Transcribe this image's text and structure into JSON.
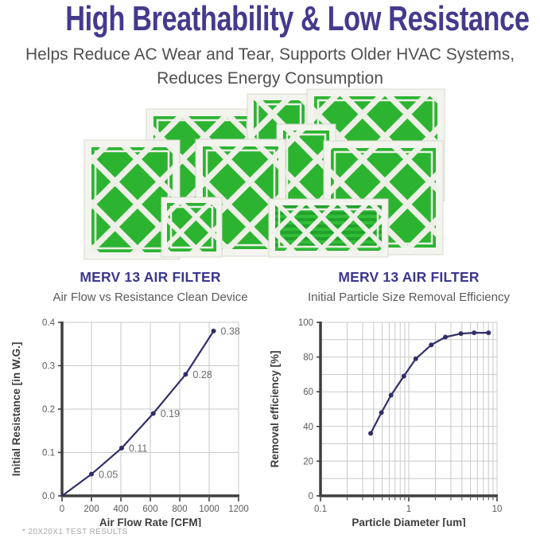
{
  "header": {
    "title": "High Breathability & Low Resistance",
    "subtitle_line1": "Helps Reduce AC Wear and Tear, Supports Older HVAC Systems,",
    "subtitle_line2": "Reduces Energy Consumption"
  },
  "hero": {
    "description": "Group of nine green pleated air filters with white cardboard frames and diagonal lattice supports"
  },
  "footnote": "*  20X20X1 TEST RESULTS",
  "colors": {
    "accent_purple": "#443a8d",
    "chart_title_purple": "#3b3690",
    "chart_line": "#312f68",
    "filter_green": "#2cb431",
    "grid_gray": "#c9c9c9",
    "axis_dark": "#3e3e3e"
  },
  "chart_data": [
    {
      "type": "line",
      "title": "MERV 13 AIR FILTER",
      "subtitle": "Air Flow vs Resistance Clean Device",
      "xlabel": "Air Flow Rate [CFM]",
      "ylabel": "Initial Resistance [in W.G.]",
      "xscale": "linear",
      "xlim": [
        0,
        1200
      ],
      "ylim": [
        0,
        0.4
      ],
      "xticks": [
        0,
        200,
        400,
        600,
        800,
        1000,
        1200
      ],
      "xtick_labels": [
        "0",
        "200",
        "400",
        "600",
        "800",
        "1000",
        "1200"
      ],
      "yticks": [
        0,
        0.1,
        0.2,
        0.3,
        0.4
      ],
      "ytick_labels": [
        "0.0",
        "0.1",
        "0.2",
        "0.3",
        "0.4"
      ],
      "xgrid": [
        200,
        400,
        600,
        800,
        1000,
        1200
      ],
      "ygrid": [
        0.1,
        0.2,
        0.3,
        0.4
      ],
      "grid": true,
      "legend": "none",
      "points": [
        {
          "x": 0,
          "y": 0
        },
        {
          "x": 200,
          "y": 0.05,
          "label": "0.05"
        },
        {
          "x": 405,
          "y": 0.11,
          "label": "0.11"
        },
        {
          "x": 620,
          "y": 0.19,
          "label": "0.19"
        },
        {
          "x": 840,
          "y": 0.28,
          "label": "0.28"
        },
        {
          "x": 1030,
          "y": 0.38,
          "label": "0.38"
        }
      ]
    },
    {
      "type": "line",
      "title": "MERV 13 AIR FILTER",
      "subtitle": "Initial Particle Size Removal Efficiency",
      "xlabel": "Particle Diameter [um]",
      "ylabel": "Removal efficiency [%]",
      "xscale": "log",
      "xlim": [
        0.1,
        10
      ],
      "ylim": [
        0,
        100
      ],
      "xticks": [
        0.1,
        1,
        10
      ],
      "xtick_labels": [
        "0.1",
        "1",
        "10"
      ],
      "yticks": [
        0,
        20,
        40,
        60,
        80,
        100
      ],
      "ytick_labels": [
        "0",
        "20",
        "40",
        "60",
        "80",
        "100"
      ],
      "xgrid": [
        0.2,
        0.3,
        0.4,
        0.5,
        0.6,
        0.7,
        0.8,
        0.9,
        1,
        2,
        3,
        4,
        5,
        6,
        7,
        8,
        9,
        10
      ],
      "ygrid": [
        10,
        20,
        30,
        40,
        50,
        60,
        70,
        80,
        90,
        100
      ],
      "grid": true,
      "legend": "none",
      "points": [
        {
          "x": 0.37,
          "y": 36
        },
        {
          "x": 0.49,
          "y": 48
        },
        {
          "x": 0.63,
          "y": 58
        },
        {
          "x": 0.88,
          "y": 69
        },
        {
          "x": 1.2,
          "y": 79
        },
        {
          "x": 1.8,
          "y": 87
        },
        {
          "x": 2.6,
          "y": 91.5
        },
        {
          "x": 3.9,
          "y": 93.5
        },
        {
          "x": 5.5,
          "y": 94
        },
        {
          "x": 8.0,
          "y": 94
        }
      ]
    }
  ]
}
